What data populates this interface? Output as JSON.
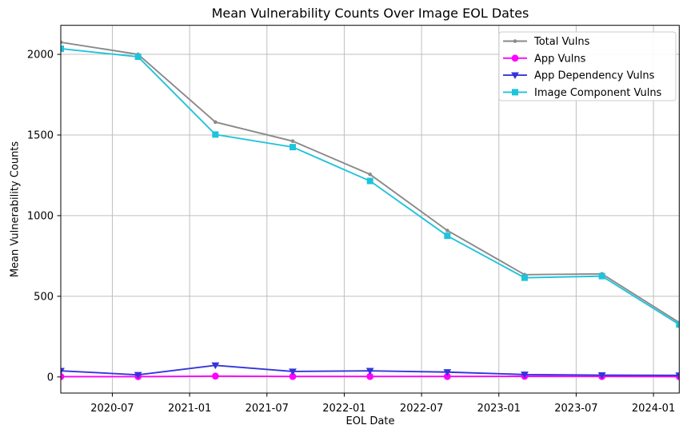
{
  "figure": {
    "background": "#ffffff"
  },
  "chart_data": {
    "type": "line",
    "title": "Mean Vulnerability Counts Over Image EOL Dates",
    "xlabel": "EOL Date",
    "ylabel": "Mean Vulnerability Counts",
    "x_dates": [
      "2020-03",
      "2020-09",
      "2021-03",
      "2021-09",
      "2022-03",
      "2022-09",
      "2023-03",
      "2023-09",
      "2024-03"
    ],
    "x_months": [
      0,
      6,
      12,
      18,
      24,
      30,
      36,
      42,
      48
    ],
    "series": [
      {
        "name": "Total Vulns",
        "color": "#8a8a8a",
        "marker": "dot",
        "values": [
          2075,
          2000,
          1580,
          1462,
          1256,
          908,
          634,
          639,
          337
        ]
      },
      {
        "name": "App Vulns",
        "color": "#ff00ff",
        "marker": "circle",
        "values": [
          2,
          2,
          5,
          3,
          3,
          3,
          4,
          3,
          2
        ]
      },
      {
        "name": "App Dependency Vulns",
        "color": "#3434dd",
        "marker": "triangle-down",
        "values": [
          38,
          13,
          72,
          34,
          38,
          30,
          15,
          11,
          10
        ]
      },
      {
        "name": "Image Component Vulns",
        "color": "#1fc3dc",
        "marker": "square",
        "values": [
          2035,
          1985,
          1503,
          1425,
          1215,
          875,
          615,
          625,
          325
        ]
      }
    ],
    "x_ticks": [
      {
        "label": "2020-07",
        "month": 4
      },
      {
        "label": "2021-01",
        "month": 10
      },
      {
        "label": "2021-07",
        "month": 16
      },
      {
        "label": "2022-01",
        "month": 22
      },
      {
        "label": "2022-07",
        "month": 28
      },
      {
        "label": "2023-01",
        "month": 34
      },
      {
        "label": "2023-07",
        "month": 40
      },
      {
        "label": "2024-01",
        "month": 46
      }
    ],
    "y_ticks": [
      0,
      500,
      1000,
      1500,
      2000
    ],
    "ylim": [
      -100,
      2180
    ],
    "xlim_months": [
      0,
      48
    ],
    "grid": true,
    "legend_position": "upper right"
  },
  "colors": {
    "grid": "#bfbfbf",
    "spine": "#000000",
    "tick": "#000000",
    "text": "#000000",
    "legend_border": "#cccccc",
    "legend_fill": "#ffffff"
  }
}
